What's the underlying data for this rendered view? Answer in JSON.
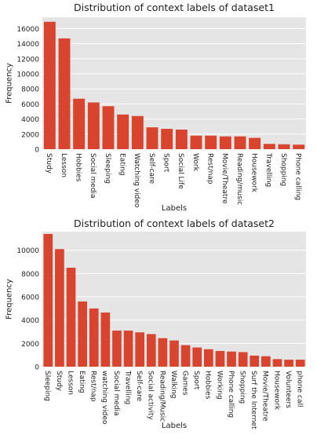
{
  "chart_data": [
    {
      "type": "bar",
      "title": "Distribution of context labels of dataset1",
      "xlabel": "Labels",
      "ylabel": "Frequency",
      "ylim": [
        0,
        17500
      ],
      "yticks": [
        0,
        2000,
        4000,
        6000,
        8000,
        10000,
        12000,
        14000,
        16000
      ],
      "grid": true,
      "bar_color": "#d9442e",
      "background": "#e5e5e5",
      "categories": [
        "Study",
        "Lesson",
        "Hobbies",
        "Social media",
        "Sleeping",
        "Eating",
        "Watching video",
        "Self-care",
        "Sport",
        "Social Life",
        "Work",
        "Rest/nap",
        "Movie/Theatre",
        "Reading/music",
        "Housework",
        "Travelling",
        "Shopping",
        "Phone calling"
      ],
      "values": [
        16900,
        14700,
        6700,
        6200,
        5700,
        4600,
        4400,
        2900,
        2700,
        2600,
        1800,
        1800,
        1700,
        1700,
        1500,
        700,
        650,
        600
      ]
    },
    {
      "type": "bar",
      "title": "Distribution of context labels of dataset2",
      "xlabel": "Labels",
      "ylabel": "Frequency",
      "ylim": [
        0,
        11600
      ],
      "yticks": [
        0,
        2000,
        4000,
        6000,
        8000,
        10000
      ],
      "grid": true,
      "bar_color": "#d9442e",
      "background": "#e5e5e5",
      "categories": [
        "Sleeping",
        "Study",
        "Lesson",
        "Eating",
        "Rest/nap",
        "watching video",
        "Social media",
        "Travelling",
        "Self-care",
        "Social activity",
        "Reading/Music",
        "Walking",
        "Games",
        "Sport",
        "Hobbies",
        "Working",
        "Phone calling",
        "Shopping",
        "Surf the Internet",
        "Movie/Theatre",
        "Housework",
        "Volunteers",
        "phone call"
      ],
      "values": [
        11400,
        10100,
        8500,
        5600,
        5000,
        4650,
        3100,
        3100,
        2950,
        2800,
        2450,
        2250,
        1850,
        1650,
        1500,
        1350,
        1300,
        1250,
        950,
        900,
        650,
        600,
        600
      ]
    }
  ]
}
